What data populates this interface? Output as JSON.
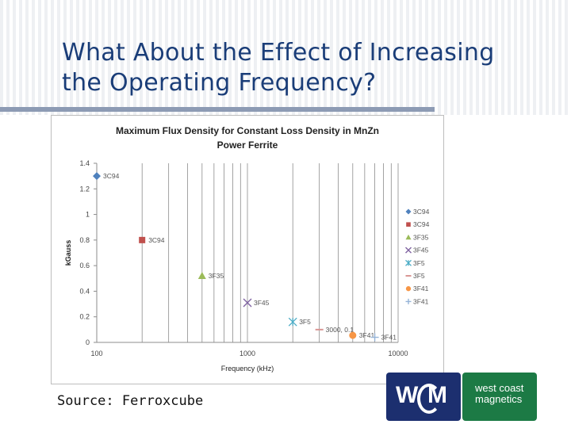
{
  "slide": {
    "title_line1": "What About the Effect of Increasing",
    "title_line2": "the Operating Frequency?",
    "source": "Source:  Ferroxcube"
  },
  "logos": {
    "left_w": "W",
    "left_m": "M",
    "right_line1": "west coast",
    "right_line2": "magnetics"
  },
  "colors": {
    "title": "#1a3d78",
    "rule": "#8d9bb4",
    "logo_left": "#1c2f6f",
    "logo_right": "#1c7a45"
  },
  "chart_data": {
    "type": "scatter",
    "title_line1": "Maximum Flux Density for Constant Loss Density in MnZn",
    "title_line2": "Power Ferrite",
    "xlabel": "Frequency (kHz)",
    "ylabel": "kGauss",
    "x_scale": "log",
    "xlim": [
      100,
      10000
    ],
    "ylim": [
      0,
      1.4
    ],
    "x_ticks": [
      "100",
      "1000",
      "10000"
    ],
    "y_ticks": [
      "0",
      "0.2",
      "0.4",
      "0.6",
      "0.8",
      "1",
      "1.2",
      "1.4"
    ],
    "grid": "vertical",
    "legend_position": "right",
    "points": [
      {
        "series": "3C94",
        "label": "3C94",
        "x": 100,
        "y": 1.3,
        "marker": "diamond",
        "color": "#4f81bd"
      },
      {
        "series": "3C94",
        "label": "3C94",
        "x": 200,
        "y": 0.8,
        "marker": "square",
        "color": "#c0504d"
      },
      {
        "series": "3F35",
        "label": "3F35",
        "x": 500,
        "y": 0.52,
        "marker": "triangle",
        "color": "#9bbb59"
      },
      {
        "series": "3F45",
        "label": "3F45",
        "x": 1000,
        "y": 0.31,
        "marker": "x",
        "color": "#8064a2"
      },
      {
        "series": "3F5",
        "label": "3F5",
        "x": 2000,
        "y": 0.16,
        "marker": "star",
        "color": "#4bacc6"
      },
      {
        "series": "3F5",
        "label": "3000, 0.1",
        "x": 3000,
        "y": 0.1,
        "marker": "dash",
        "color": "#d99694"
      },
      {
        "series": "3F41",
        "label": "3F41",
        "x": 5000,
        "y": 0.055,
        "marker": "circle",
        "color": "#f79646"
      },
      {
        "series": "3F41",
        "label": "3F41",
        "x": 7000,
        "y": 0.04,
        "marker": "plus",
        "color": "#95b3d7"
      }
    ],
    "legend": [
      {
        "name": "3C94",
        "marker": "diamond",
        "color": "#4f81bd"
      },
      {
        "name": "3C94",
        "marker": "square",
        "color": "#c0504d"
      },
      {
        "name": "3F35",
        "marker": "triangle",
        "color": "#9bbb59"
      },
      {
        "name": "3F45",
        "marker": "x",
        "color": "#8064a2"
      },
      {
        "name": "3F5",
        "marker": "star",
        "color": "#4bacc6"
      },
      {
        "name": "3F5",
        "marker": "dash",
        "color": "#d99694"
      },
      {
        "name": "3F41",
        "marker": "circle",
        "color": "#f79646"
      },
      {
        "name": "3F41",
        "marker": "plus",
        "color": "#95b3d7"
      }
    ]
  }
}
